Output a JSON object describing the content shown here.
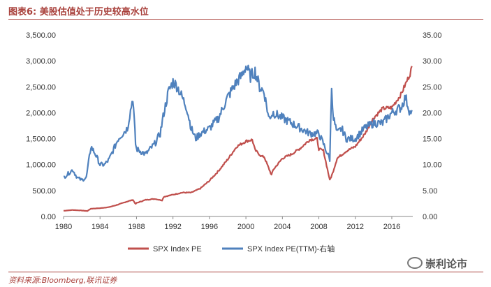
{
  "title": "图表6:   美股估值处于历史较高水位",
  "source": "资料来源:Bloomberg,联讯证券",
  "watermark": "崇利论市",
  "chart_data": {
    "type": "line",
    "left_ticks": [
      "0.00",
      "500.00",
      "1,000.00",
      "1,500.00",
      "2,000.00",
      "2,500.00",
      "3,000.00",
      "3,500.00"
    ],
    "right_ticks": [
      "0.00",
      "5.00",
      "10.00",
      "15.00",
      "20.00",
      "25.00",
      "30.00",
      "35.00"
    ],
    "x_ticks": [
      "1980",
      "1984",
      "1988",
      "1992",
      "1996",
      "2000",
      "2004",
      "2008",
      "2012",
      "2016"
    ],
    "ylim_left": [
      0,
      3500
    ],
    "ylim_right": [
      0,
      35
    ],
    "xlim": [
      1980,
      2018.3
    ],
    "grid": false,
    "legend_position": "bottom",
    "series": [
      {
        "name": "SPX Index PE",
        "axis": "left",
        "color": "#c0504d",
        "x": [
          1980,
          1981,
          1982,
          1982.6,
          1983,
          1984,
          1985,
          1986,
          1987,
          1987.6,
          1987.9,
          1988,
          1989,
          1990,
          1990.8,
          1991,
          1992,
          1993,
          1994,
          1995,
          1996,
          1997,
          1998,
          1999,
          2000,
          2000.7,
          2001,
          2001.7,
          2002,
          2002.8,
          2003,
          2004,
          2005,
          2006,
          2007,
          2007.8,
          2008,
          2008.5,
          2009.2,
          2009.5,
          2010,
          2011,
          2012,
          2013,
          2014,
          2015,
          2016,
          2017,
          2018,
          2018.2
        ],
        "values": [
          110,
          125,
          115,
          105,
          150,
          160,
          180,
          230,
          290,
          320,
          240,
          260,
          320,
          340,
          310,
          380,
          420,
          460,
          460,
          540,
          690,
          880,
          1100,
          1350,
          1450,
          1480,
          1280,
          1160,
          1150,
          800,
          900,
          1120,
          1200,
          1320,
          1480,
          1500,
          1300,
          1270,
          700,
          830,
          1120,
          1260,
          1350,
          1580,
          1900,
          2080,
          2100,
          2350,
          2750,
          2900
        ]
      },
      {
        "name": "SPX Index PE(TTM)-右轴",
        "axis": "right",
        "color": "#4f81bd",
        "x": [
          1980,
          1981,
          1981.5,
          1982,
          1982.5,
          1983,
          1983.5,
          1984,
          1984.5,
          1985,
          1986,
          1987,
          1987.6,
          1987.9,
          1988,
          1989,
          1990,
          1990.6,
          1991,
          1991.5,
          1992,
          1992.5,
          1993,
          1993.5,
          1994,
          1994.5,
          1995,
          1996,
          1997,
          1998,
          1999,
          1999.5,
          2000,
          2000.5,
          2001,
          2001.5,
          2002,
          2002.5,
          2003,
          2004,
          2005,
          2006,
          2007,
          2008,
          2008.5,
          2009.2,
          2009.4,
          2009.6,
          2010,
          2010.5,
          2011,
          2012,
          2013,
          2014,
          2015,
          2016,
          2017,
          2017.5,
          2018,
          2018.2
        ],
        "values": [
          7.5,
          9,
          7.5,
          7,
          7.5,
          13.5,
          12,
          10,
          10,
          11,
          15,
          17,
          23,
          14,
          13,
          12,
          14,
          16,
          20,
          24,
          26,
          25,
          23,
          21,
          17,
          15,
          16,
          17,
          19,
          23,
          26,
          27,
          29,
          27,
          28,
          25,
          24,
          19,
          20,
          19,
          18,
          17,
          16,
          16,
          14,
          11,
          25,
          19,
          16,
          17,
          15,
          15,
          17,
          18,
          18,
          20,
          21,
          23,
          20,
          20.5
        ]
      }
    ]
  }
}
